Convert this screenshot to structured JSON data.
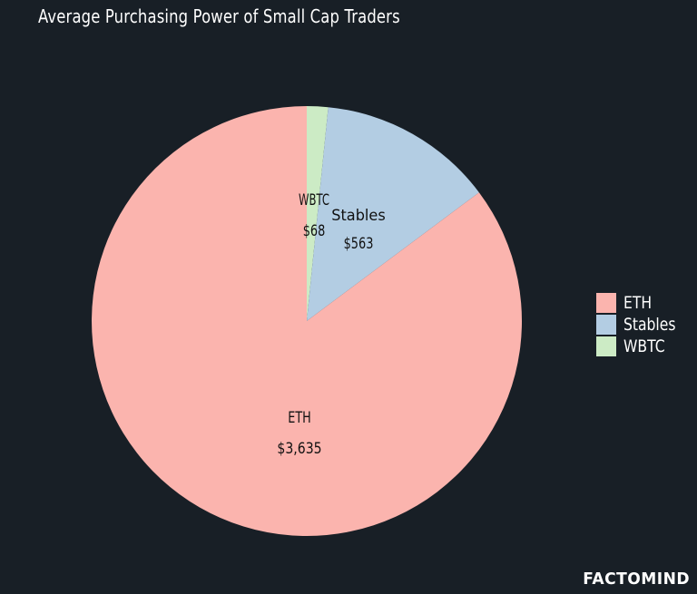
{
  "chart_data": {
    "type": "pie",
    "title": "Average Purchasing Power of Small Cap Traders",
    "slices": [
      {
        "label": "ETH",
        "value": 3635,
        "value_label": "$3,635",
        "color": "#fbb4ae"
      },
      {
        "label": "Stables",
        "value": 563,
        "value_label": "$563",
        "color": "#b3cde3"
      },
      {
        "label": "WBTC",
        "value": 68,
        "value_label": "$68",
        "color": "#ccebc5"
      }
    ],
    "legend": {
      "placement": "right",
      "entries": [
        "ETH",
        "Stables",
        "WBTC"
      ]
    },
    "background": "#181f26"
  },
  "brand": "FACTOMIND"
}
